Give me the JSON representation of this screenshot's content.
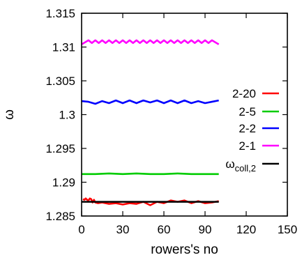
{
  "chart_data": {
    "type": "line",
    "title": "",
    "xlabel": "rowers's no",
    "ylabel": "ω",
    "xlim": [
      0,
      150
    ],
    "ylim": [
      1.285,
      1.315
    ],
    "xticks": [
      "0",
      "30",
      "60",
      "90",
      "120",
      "150"
    ],
    "yticks": [
      "1.285",
      "1.29",
      "1.295",
      "1.3",
      "1.305",
      "1.31",
      "1.315"
    ],
    "grid": false,
    "legend_position": "right",
    "series": [
      {
        "name": "2-20",
        "color": "#ff0000",
        "x": [
          1,
          2,
          3,
          4,
          5,
          6,
          7,
          8,
          9,
          10,
          12,
          15,
          20,
          25,
          30,
          35,
          40,
          45,
          50,
          55,
          60,
          65,
          70,
          75,
          80,
          85,
          90,
          95,
          100
        ],
        "y": [
          1.2875,
          1.2874,
          1.2876,
          1.2874,
          1.2873,
          1.2876,
          1.2875,
          1.287,
          1.2874,
          1.287,
          1.2869,
          1.287,
          1.2868,
          1.2869,
          1.2867,
          1.2869,
          1.2868,
          1.2871,
          1.2866,
          1.2871,
          1.2869,
          1.2873,
          1.2871,
          1.2873,
          1.2869,
          1.2872,
          1.2869,
          1.287,
          1.2872
        ]
      },
      {
        "name": "2-5",
        "color": "#00cc00",
        "x": [
          0,
          10,
          20,
          30,
          40,
          50,
          60,
          70,
          80,
          90,
          100
        ],
        "y": [
          1.2912,
          1.2912,
          1.2913,
          1.2912,
          1.2913,
          1.2912,
          1.2912,
          1.2913,
          1.2912,
          1.2912,
          1.2912
        ]
      },
      {
        "name": "2-2",
        "color": "#0000ff",
        "x": [
          0,
          5,
          10,
          15,
          20,
          25,
          30,
          35,
          40,
          45,
          50,
          55,
          60,
          65,
          70,
          75,
          80,
          85,
          90,
          95,
          100
        ],
        "y": [
          1.302,
          1.3019,
          1.3016,
          1.302,
          1.3017,
          1.3021,
          1.3017,
          1.3021,
          1.3017,
          1.3021,
          1.3018,
          1.3021,
          1.3017,
          1.3021,
          1.3017,
          1.3021,
          1.3017,
          1.302,
          1.3017,
          1.3019,
          1.3021
        ]
      },
      {
        "name": "2-1",
        "color": "#ff00ff",
        "x": [
          0,
          2.5,
          5,
          7.5,
          10,
          12.5,
          15,
          17.5,
          20,
          22.5,
          25,
          27.5,
          30,
          32.5,
          35,
          37.5,
          40,
          42.5,
          45,
          47.5,
          50,
          52.5,
          55,
          57.5,
          60,
          62.5,
          65,
          67.5,
          70,
          72.5,
          75,
          77.5,
          80,
          82.5,
          85,
          87.5,
          90,
          92.5,
          95,
          97.5,
          100
        ],
        "y": [
          1.3104,
          1.3107,
          1.311,
          1.3106,
          1.311,
          1.3106,
          1.311,
          1.3106,
          1.311,
          1.3106,
          1.311,
          1.3106,
          1.311,
          1.3106,
          1.311,
          1.3106,
          1.311,
          1.3106,
          1.311,
          1.3106,
          1.311,
          1.3106,
          1.311,
          1.3106,
          1.311,
          1.3106,
          1.311,
          1.3106,
          1.311,
          1.3106,
          1.311,
          1.3106,
          1.311,
          1.3106,
          1.311,
          1.3106,
          1.311,
          1.3106,
          1.311,
          1.3107,
          1.3104
        ]
      },
      {
        "name": "ωcoll,2",
        "name_main": "ω",
        "name_sub": "coll,2",
        "color": "#000000",
        "x": [
          0,
          100
        ],
        "y": [
          1.2871,
          1.2871
        ]
      }
    ]
  }
}
